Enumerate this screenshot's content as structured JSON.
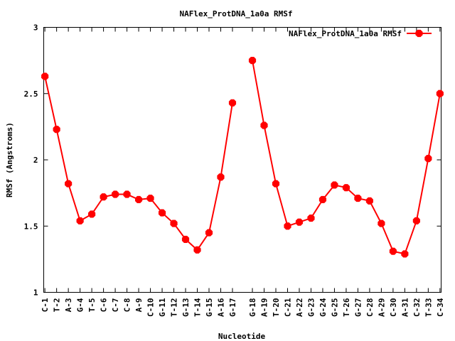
{
  "chart_data": {
    "type": "line",
    "title": "NAFlex_ProtDNA_1a0a RMSf",
    "xlabel": "Nucleotide",
    "ylabel": "RMSf (Angstroms)",
    "ylim": [
      1,
      3
    ],
    "yticks": [
      "1",
      "1.5",
      "2",
      "2.5",
      "3"
    ],
    "ytick_values": [
      1,
      1.5,
      2,
      2.5,
      3
    ],
    "grid": false,
    "legend_position": "top-right",
    "categories": [
      "C-1",
      "T-2",
      "A-3",
      "G-4",
      "T-5",
      "C-6",
      "C-7",
      "C-8",
      "A-9",
      "C-10",
      "G-11",
      "T-12",
      "G-13",
      "T-14",
      "G-15",
      "A-16",
      "G-17",
      "G-18",
      "A-19",
      "T-20",
      "C-21",
      "A-22",
      "G-23",
      "G-24",
      "G-25",
      "T-26",
      "G-27",
      "C-28",
      "A-29",
      "C-30",
      "A-31",
      "C-32",
      "T-33",
      "C-34"
    ],
    "x": [
      1,
      2,
      3,
      4,
      5,
      6,
      7,
      8,
      9,
      10,
      11,
      12,
      13,
      14,
      15,
      16,
      17,
      18.7,
      19.7,
      20.7,
      21.7,
      22.7,
      23.7,
      24.7,
      25.7,
      26.7,
      27.7,
      28.7,
      29.7,
      30.7,
      31.7,
      32.7,
      33.7,
      34.7
    ],
    "xlim": [
      0.9,
      34.8
    ],
    "series": [
      {
        "name": "NAFlex_ProtDNA_1a0a RMSf",
        "color": "#ff0000",
        "segments": [
          [
            0,
            16
          ],
          [
            17,
            33
          ]
        ],
        "values": [
          2.63,
          2.23,
          1.82,
          1.54,
          1.59,
          1.72,
          1.74,
          1.74,
          1.7,
          1.71,
          1.6,
          1.52,
          1.4,
          1.32,
          1.45,
          1.87,
          2.43,
          2.75,
          2.26,
          1.82,
          1.5,
          1.53,
          1.56,
          1.7,
          1.81,
          1.79,
          1.71,
          1.69,
          1.52,
          1.31,
          1.29,
          1.54,
          2.01,
          2.5
        ]
      }
    ]
  }
}
